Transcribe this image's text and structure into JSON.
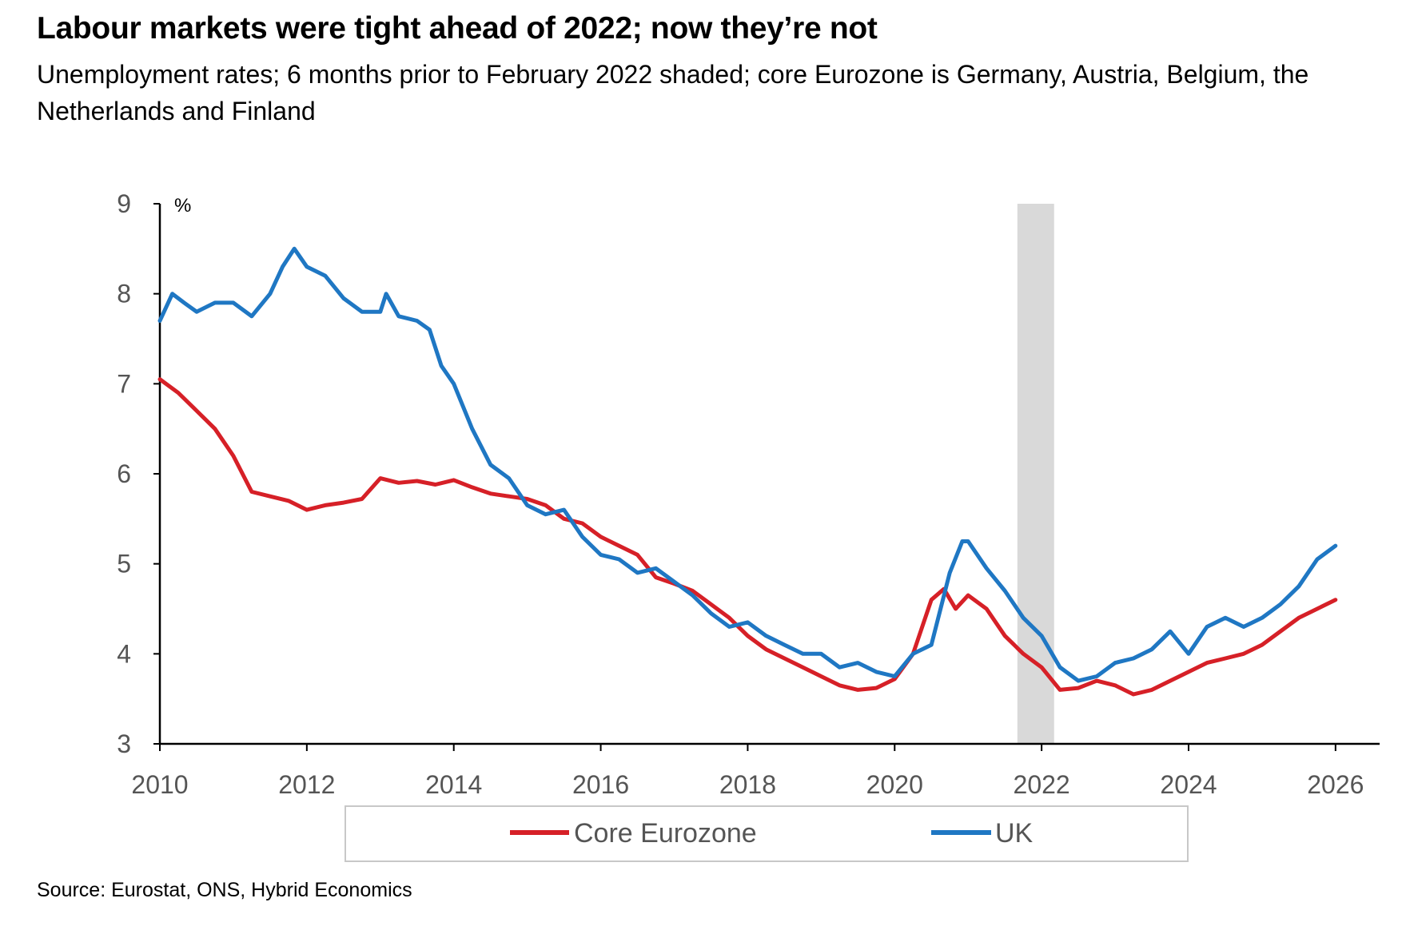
{
  "title": "Labour markets were tight ahead of 2022; now they’re not",
  "subtitle": "Unemployment rates; 6 months prior to February 2022 shaded; core Eurozone is Germany, Austria, Belgium, the Netherlands and Finland",
  "source": "Source: Eurostat, ONS, Hybrid Economics",
  "colors": {
    "core_eurozone": "#d62027",
    "uk": "#1f77c3",
    "shade": "#d9d9d9",
    "axis": "#000000"
  },
  "chart_data": {
    "type": "line",
    "ylabel": "%",
    "xlim": [
      2010,
      2026.6
    ],
    "ylim": [
      3,
      9
    ],
    "x_ticks": [
      2010,
      2012,
      2014,
      2016,
      2018,
      2020,
      2022,
      2024,
      2026
    ],
    "y_ticks": [
      3,
      4,
      5,
      6,
      7,
      8,
      9
    ],
    "shaded_region": {
      "x": [
        2021.67,
        2022.17
      ]
    },
    "legend_position": "bottom",
    "series": [
      {
        "name": "Core Eurozone",
        "color": "#d62027",
        "x": [
          2010.0,
          2010.25,
          2010.5,
          2010.75,
          2011.0,
          2011.25,
          2011.5,
          2011.75,
          2012.0,
          2012.25,
          2012.5,
          2012.75,
          2013.0,
          2013.25,
          2013.5,
          2013.75,
          2014.0,
          2014.25,
          2014.5,
          2014.75,
          2015.0,
          2015.25,
          2015.5,
          2015.75,
          2016.0,
          2016.25,
          2016.5,
          2016.75,
          2017.0,
          2017.25,
          2017.5,
          2017.75,
          2018.0,
          2018.25,
          2018.5,
          2018.75,
          2019.0,
          2019.25,
          2019.5,
          2019.75,
          2020.0,
          2020.25,
          2020.5,
          2020.67,
          2020.83,
          2021.0,
          2021.25,
          2021.5,
          2021.75,
          2022.0,
          2022.25,
          2022.5,
          2022.75,
          2023.0,
          2023.25,
          2023.5,
          2023.75,
          2024.0,
          2024.25,
          2024.5,
          2024.75,
          2025.0,
          2025.25,
          2025.5,
          2025.75,
          2026.0
        ],
        "y": [
          7.05,
          6.9,
          6.7,
          6.5,
          6.2,
          5.8,
          5.75,
          5.7,
          5.6,
          5.65,
          5.68,
          5.72,
          5.95,
          5.9,
          5.92,
          5.88,
          5.93,
          5.85,
          5.78,
          5.75,
          5.72,
          5.65,
          5.5,
          5.45,
          5.3,
          5.2,
          5.1,
          4.85,
          4.78,
          4.7,
          4.55,
          4.4,
          4.2,
          4.05,
          3.95,
          3.85,
          3.75,
          3.65,
          3.6,
          3.62,
          3.72,
          4.0,
          4.6,
          4.72,
          4.5,
          4.65,
          4.5,
          4.2,
          4.0,
          3.85,
          3.6,
          3.62,
          3.7,
          3.65,
          3.55,
          3.6,
          3.7,
          3.8,
          3.9,
          3.95,
          4.0,
          4.1,
          4.25,
          4.4,
          4.5,
          4.6
        ]
      },
      {
        "name": "UK",
        "color": "#1f77c3",
        "x": [
          2010.0,
          2010.17,
          2010.33,
          2010.5,
          2010.75,
          2011.0,
          2011.25,
          2011.5,
          2011.67,
          2011.83,
          2012.0,
          2012.25,
          2012.5,
          2012.75,
          2013.0,
          2013.08,
          2013.25,
          2013.5,
          2013.67,
          2013.83,
          2014.0,
          2014.25,
          2014.5,
          2014.75,
          2015.0,
          2015.25,
          2015.5,
          2015.75,
          2016.0,
          2016.25,
          2016.5,
          2016.75,
          2017.0,
          2017.25,
          2017.5,
          2017.75,
          2018.0,
          2018.25,
          2018.5,
          2018.75,
          2019.0,
          2019.25,
          2019.5,
          2019.75,
          2020.0,
          2020.25,
          2020.5,
          2020.75,
          2020.92,
          2021.0,
          2021.25,
          2021.5,
          2021.75,
          2022.0,
          2022.25,
          2022.5,
          2022.75,
          2023.0,
          2023.25,
          2023.5,
          2023.75,
          2024.0,
          2024.25,
          2024.5,
          2024.75,
          2025.0,
          2025.25,
          2025.5,
          2025.75,
          2026.0
        ],
        "y": [
          7.7,
          8.0,
          7.9,
          7.8,
          7.9,
          7.9,
          7.75,
          8.0,
          8.3,
          8.5,
          8.3,
          8.2,
          7.95,
          7.8,
          7.8,
          8.0,
          7.75,
          7.7,
          7.6,
          7.2,
          7.0,
          6.5,
          6.1,
          5.95,
          5.65,
          5.55,
          5.6,
          5.3,
          5.1,
          5.05,
          4.9,
          4.95,
          4.8,
          4.65,
          4.45,
          4.3,
          4.35,
          4.2,
          4.1,
          4.0,
          4.0,
          3.85,
          3.9,
          3.8,
          3.75,
          4.0,
          4.1,
          4.9,
          5.25,
          5.25,
          4.95,
          4.7,
          4.4,
          4.2,
          3.85,
          3.7,
          3.75,
          3.9,
          3.95,
          4.05,
          4.25,
          4.0,
          4.3,
          4.4,
          4.3,
          4.4,
          4.55,
          4.75,
          5.05,
          5.2
        ]
      }
    ]
  }
}
